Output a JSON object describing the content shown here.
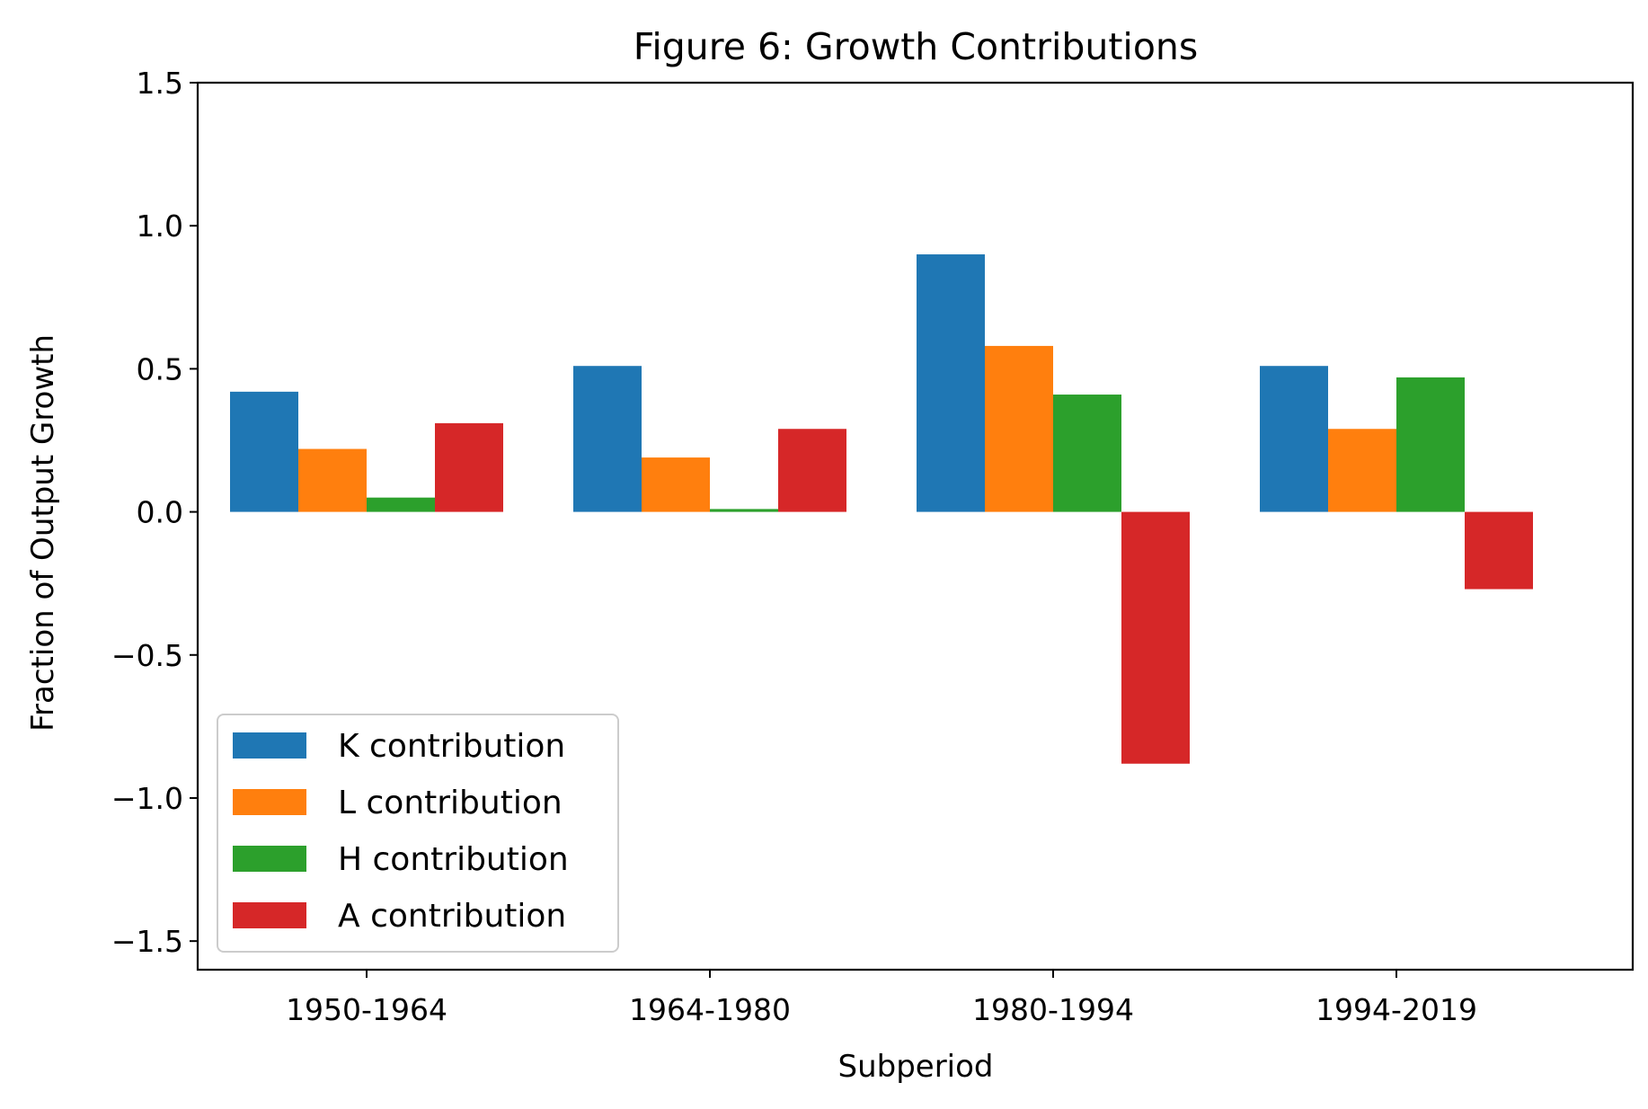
{
  "chart_data": {
    "type": "bar",
    "title": "Figure 6: Growth Contributions",
    "xlabel": "Subperiod",
    "ylabel": "Fraction of Output Growth",
    "categories": [
      "1950-1964",
      "1964-1980",
      "1980-1994",
      "1994-2019"
    ],
    "series": [
      {
        "name": "K contribution",
        "color": "#1f77b4",
        "values": [
          0.42,
          0.51,
          0.9,
          0.51
        ]
      },
      {
        "name": "L contribution",
        "color": "#ff7f0e",
        "values": [
          0.22,
          0.19,
          0.58,
          0.29
        ]
      },
      {
        "name": "H contribution",
        "color": "#2ca02c",
        "values": [
          0.05,
          0.01,
          0.41,
          0.47
        ]
      },
      {
        "name": "A contribution",
        "color": "#d62728",
        "values": [
          0.31,
          0.29,
          -0.88,
          -0.27
        ]
      }
    ],
    "ylim": [
      -1.6,
      1.5
    ],
    "yticks": [
      -1.5,
      -1.0,
      -0.5,
      0.0,
      0.5,
      1.0,
      1.5
    ],
    "ytick_labels": [
      "−1.5",
      "−1.0",
      "−0.5",
      "0.0",
      "0.5",
      "1.0",
      "1.5"
    ],
    "grid": false,
    "legend_position": "lower-left"
  }
}
